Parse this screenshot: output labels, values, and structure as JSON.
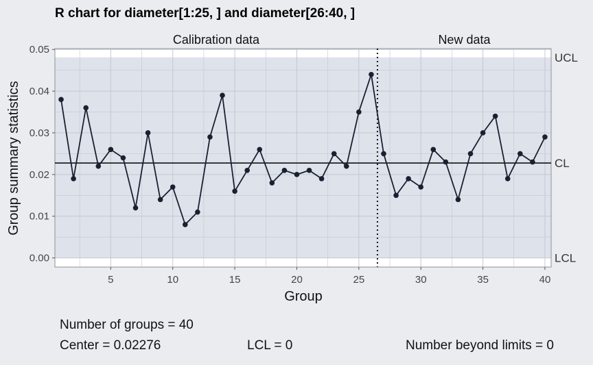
{
  "chart_data": {
    "type": "line",
    "title": "R chart for diameter[1:25, ] and diameter[26:40, ]",
    "xlabel": "Group",
    "ylabel": "Group summary statistics",
    "xlim": [
      0.5,
      40.5
    ],
    "ylim": [
      -0.0022,
      0.0502
    ],
    "xticks": [
      5,
      10,
      15,
      20,
      25,
      30,
      35,
      40
    ],
    "yticks": [
      0.0,
      0.01,
      0.02,
      0.03,
      0.04,
      0.05
    ],
    "ytick_labels": [
      "0.00",
      "0.01",
      "0.02",
      "0.03",
      "0.04",
      "0.05"
    ],
    "grid": true,
    "section_labels": [
      "Calibration data",
      "New data"
    ],
    "section_boundary": 26.5,
    "limits": [
      {
        "label": "UCL",
        "value": 0.0481
      },
      {
        "label": "CL",
        "value": 0.02276
      },
      {
        "label": "LCL",
        "value": 0
      }
    ],
    "x": [
      1,
      2,
      3,
      4,
      5,
      6,
      7,
      8,
      9,
      10,
      11,
      12,
      13,
      14,
      15,
      16,
      17,
      18,
      19,
      20,
      21,
      22,
      23,
      24,
      25,
      26,
      27,
      28,
      29,
      30,
      31,
      32,
      33,
      34,
      35,
      36,
      37,
      38,
      39,
      40
    ],
    "values": [
      0.038,
      0.019,
      0.036,
      0.022,
      0.026,
      0.024,
      0.012,
      0.03,
      0.014,
      0.017,
      0.008,
      0.011,
      0.029,
      0.039,
      0.016,
      0.021,
      0.026,
      0.018,
      0.021,
      0.02,
      0.021,
      0.019,
      0.025,
      0.022,
      0.035,
      0.044,
      0.025,
      0.015,
      0.019,
      0.017,
      0.026,
      0.023,
      0.014,
      0.025,
      0.03,
      0.034,
      0.019,
      0.025,
      0.023,
      0.029
    ],
    "colors": {
      "band": "#dde2eb",
      "line": "#1a2030",
      "grid": "#c4c8d0",
      "background": "#ebecf0"
    }
  },
  "stats": {
    "groups": "Number of groups = 40",
    "center": "Center = 0.02276",
    "lcl": "LCL = 0",
    "beyond": "Number beyond limits = 0"
  }
}
